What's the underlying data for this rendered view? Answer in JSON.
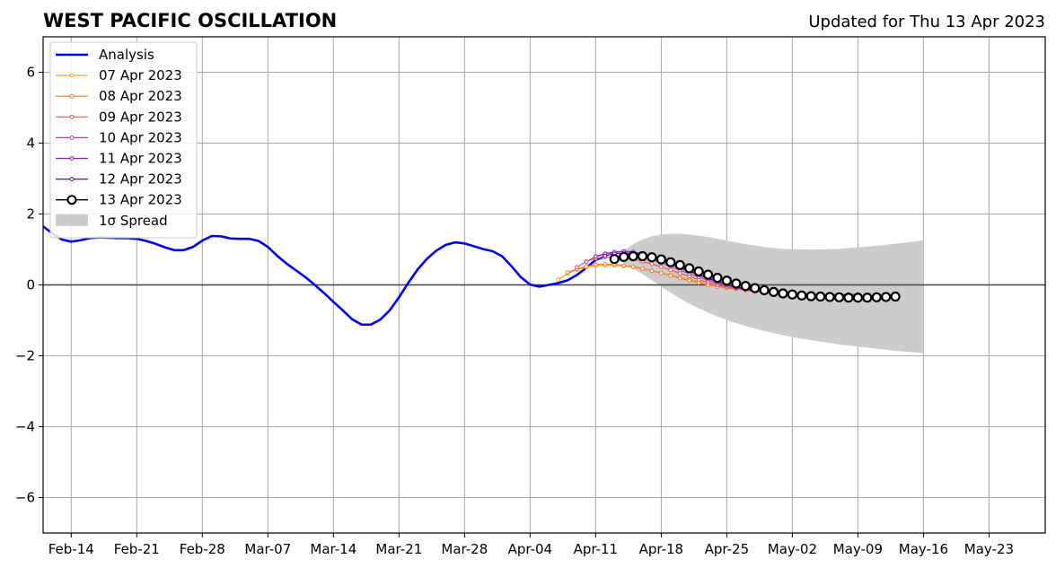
{
  "chart_data": {
    "type": "line",
    "title": "WEST PACIFIC OSCILLATION",
    "subtitle": "Updated for Thu 13 Apr 2023",
    "xlabel": "",
    "ylabel": "",
    "xlim": [
      "2023-02-11",
      "2023-05-29"
    ],
    "ylim": [
      -7,
      7
    ],
    "x_ticks": [
      {
        "date": "2023-02-14",
        "label": "Feb-14"
      },
      {
        "date": "2023-02-21",
        "label": "Feb-21"
      },
      {
        "date": "2023-02-28",
        "label": "Feb-28"
      },
      {
        "date": "2023-03-07",
        "label": "Mar-07"
      },
      {
        "date": "2023-03-14",
        "label": "Mar-14"
      },
      {
        "date": "2023-03-21",
        "label": "Mar-21"
      },
      {
        "date": "2023-03-28",
        "label": "Mar-28"
      },
      {
        "date": "2023-04-04",
        "label": "Apr-04"
      },
      {
        "date": "2023-04-11",
        "label": "Apr-11"
      },
      {
        "date": "2023-04-18",
        "label": "Apr-18"
      },
      {
        "date": "2023-04-25",
        "label": "Apr-25"
      },
      {
        "date": "2023-05-02",
        "label": "May-02"
      },
      {
        "date": "2023-05-09",
        "label": "May-09"
      },
      {
        "date": "2023-05-16",
        "label": "May-16"
      },
      {
        "date": "2023-05-23",
        "label": "May-23"
      }
    ],
    "y_ticks": [
      {
        "value": 6,
        "label": "6"
      },
      {
        "value": 4,
        "label": "4"
      },
      {
        "value": 2,
        "label": "2"
      },
      {
        "value": 0,
        "label": "0"
      },
      {
        "value": -2,
        "label": "−2"
      },
      {
        "value": -4,
        "label": "−4"
      },
      {
        "value": -6,
        "label": "−6"
      }
    ],
    "grid": true,
    "legend_position": "top-left",
    "analysis": {
      "name": "Analysis",
      "color": "#0000ee",
      "start": "2023-02-11",
      "values": [
        1.65,
        1.45,
        1.28,
        1.22,
        1.26,
        1.32,
        1.34,
        1.33,
        1.32,
        1.32,
        1.3,
        1.24,
        1.16,
        1.06,
        0.98,
        0.98,
        1.07,
        1.25,
        1.38,
        1.37,
        1.31,
        1.3,
        1.3,
        1.24,
        1.07,
        0.82,
        0.6,
        0.41,
        0.22,
        0.0,
        -0.23,
        -0.48,
        -0.72,
        -0.97,
        -1.12,
        -1.12,
        -0.98,
        -0.72,
        -0.35,
        0.06,
        0.44,
        0.74,
        0.97,
        1.13,
        1.2,
        1.17,
        1.09,
        1.01,
        0.95,
        0.81,
        0.53,
        0.22,
        0.01,
        -0.05,
        0.0,
        0.05,
        0.13,
        0.28,
        0.48,
        0.71,
        0.8
      ]
    },
    "forecasts": [
      {
        "name": "07 Apr 2023",
        "color": "#f5a623",
        "start": "2023-04-07",
        "values": [
          0.15,
          0.32,
          0.43,
          0.5,
          0.54,
          0.55,
          0.55,
          0.53,
          0.5,
          0.46,
          0.4,
          0.34,
          0.28,
          0.22,
          0.16,
          0.1,
          0.04,
          -0.02,
          -0.07,
          -0.11,
          -0.14,
          -0.16
        ]
      },
      {
        "name": "08 Apr 2023",
        "color": "#f07e35",
        "start": "2023-04-08",
        "values": [
          0.35,
          0.45,
          0.52,
          0.57,
          0.59,
          0.58,
          0.55,
          0.51,
          0.46,
          0.4,
          0.33,
          0.26,
          0.19,
          0.12,
          0.06,
          0.0,
          -0.05,
          -0.09,
          -0.12
        ]
      },
      {
        "name": "09 Apr 2023",
        "color": "#e05a6a",
        "start": "2023-04-09",
        "values": [
          0.5,
          0.66,
          0.75,
          0.78,
          0.78,
          0.76,
          0.72,
          0.66,
          0.59,
          0.51,
          0.42,
          0.33,
          0.24,
          0.15,
          0.07,
          0.0,
          -0.06,
          -0.11,
          -0.15,
          -0.19
        ]
      },
      {
        "name": "10 Apr 2023",
        "color": "#b8439a",
        "start": "2023-04-10",
        "values": [
          0.65,
          0.8,
          0.88,
          0.9,
          0.89,
          0.85,
          0.79,
          0.71,
          0.62,
          0.52,
          0.42,
          0.32,
          0.22,
          0.13,
          0.05,
          -0.02,
          -0.08,
          -0.13,
          -0.17,
          -0.2,
          -0.23,
          -0.25,
          -0.26,
          -0.27,
          -0.27,
          -0.27,
          -0.27,
          -0.27,
          -0.27,
          -0.27
        ]
      },
      {
        "name": "11 Apr 2023",
        "color": "#8a1fb0",
        "start": "2023-04-11",
        "values": [
          0.8,
          0.88,
          0.93,
          0.95,
          0.93,
          0.88,
          0.8,
          0.7,
          0.6,
          0.5,
          0.4,
          0.3,
          0.2,
          0.11,
          0.03,
          -0.05,
          -0.11,
          -0.16,
          -0.2,
          -0.23,
          -0.25,
          -0.27,
          -0.28,
          -0.29,
          -0.29,
          -0.29,
          -0.29,
          -0.29,
          -0.29
        ]
      },
      {
        "name": "12 Apr 2023",
        "color": "#5a0fa8",
        "start": "2023-04-12",
        "values": [
          0.82,
          0.88,
          0.9,
          0.89,
          0.84,
          0.77,
          0.68,
          0.58,
          0.48,
          0.38,
          0.28,
          0.18,
          0.09,
          0.01,
          -0.06,
          -0.12,
          -0.17,
          -0.21,
          -0.24,
          -0.27,
          -0.29,
          -0.3,
          -0.31,
          -0.32,
          -0.32,
          -0.32,
          -0.32,
          -0.32
        ]
      },
      {
        "name": "13 Apr 2023",
        "color": "#000000",
        "start": "2023-04-13",
        "values": [
          0.73,
          0.79,
          0.81,
          0.81,
          0.78,
          0.72,
          0.64,
          0.56,
          0.47,
          0.38,
          0.29,
          0.2,
          0.12,
          0.04,
          -0.03,
          -0.09,
          -0.15,
          -0.2,
          -0.24,
          -0.27,
          -0.3,
          -0.32,
          -0.33,
          -0.34,
          -0.35,
          -0.36,
          -0.36,
          -0.36,
          -0.35,
          -0.34,
          -0.33
        ]
      }
    ],
    "spread": {
      "name": "1σ Spread",
      "color": "#cccccc",
      "start": "2023-04-13",
      "lower": [
        0.73,
        0.62,
        0.46,
        0.3,
        0.13,
        -0.05,
        -0.22,
        -0.38,
        -0.53,
        -0.66,
        -0.78,
        -0.89,
        -0.99,
        -1.08,
        -1.16,
        -1.23,
        -1.3,
        -1.36,
        -1.42,
        -1.47,
        -1.52,
        -1.56,
        -1.6,
        -1.64,
        -1.68,
        -1.71,
        -1.74,
        -1.77,
        -1.8,
        -1.83,
        -1.86,
        -1.88,
        -1.9,
        -1.92
      ],
      "upper": [
        0.73,
        0.98,
        1.15,
        1.28,
        1.37,
        1.42,
        1.44,
        1.44,
        1.42,
        1.39,
        1.35,
        1.3,
        1.25,
        1.2,
        1.15,
        1.11,
        1.07,
        1.04,
        1.02,
        1.01,
        1.0,
        1.0,
        1.0,
        1.01,
        1.02,
        1.04,
        1.06,
        1.08,
        1.1,
        1.13,
        1.16,
        1.19,
        1.22,
        1.26
      ]
    }
  }
}
